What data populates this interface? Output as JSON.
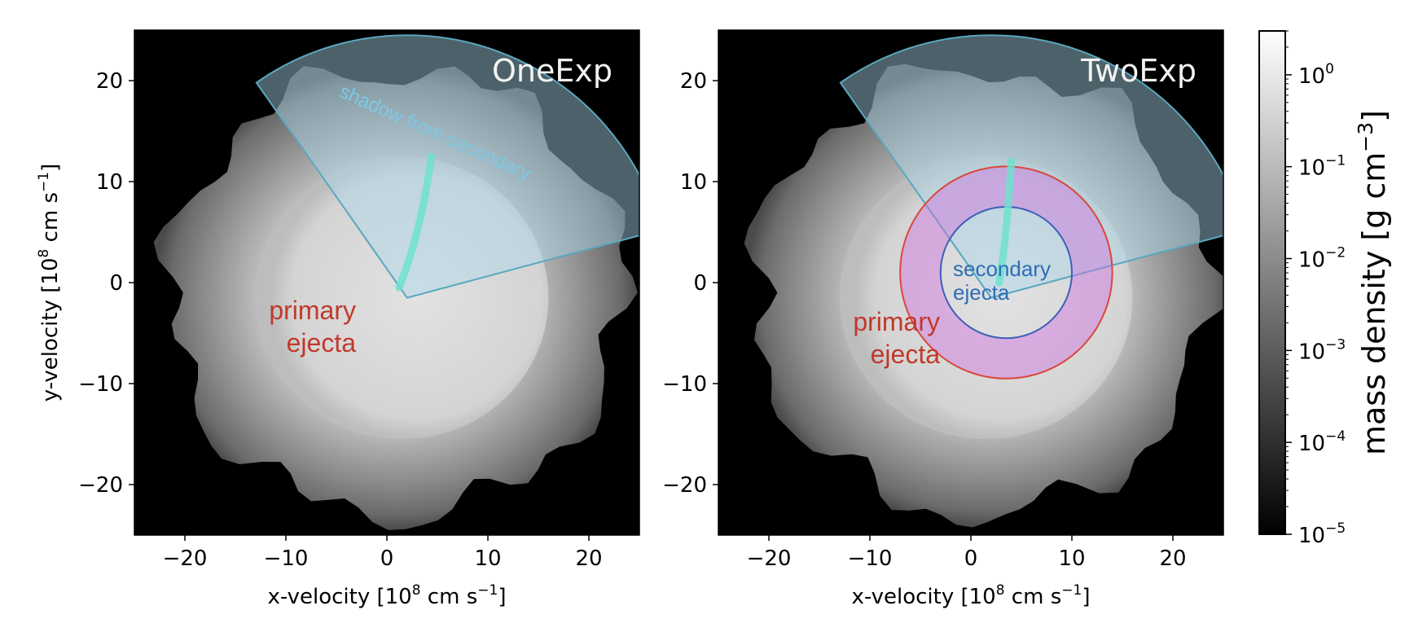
{
  "chart_data": [
    {
      "type": "heatmap",
      "title": "OneExp",
      "xlabel": "x-velocity [10",
      "xlabel_sup": "8",
      "xlabel_tail": " cm s",
      "xlabel_sup2": "−1",
      "xlabel_end": "]",
      "ylabel": "y-velocity [10",
      "ylabel_sup": "8",
      "ylabel_tail": " cm s",
      "ylabel_sup2": "−1",
      "ylabel_end": "]",
      "xlim": [
        -25,
        25
      ],
      "ylim": [
        -25,
        25
      ],
      "xticks": [
        -20,
        -10,
        0,
        10,
        20
      ],
      "yticks": [
        -20,
        -10,
        0,
        10,
        20
      ],
      "xtick_labels": [
        "−20",
        "−10",
        "0",
        "10",
        "20"
      ],
      "ytick_labels": [
        "−20",
        "−10",
        "0",
        "10",
        "20"
      ],
      "annotations": {
        "primary_line1": "primary",
        "primary_line2": "ejecta",
        "shadow": "shadow from secondary"
      },
      "shadow_wedge": {
        "center": [
          2,
          -1.5
        ],
        "angle_start_deg": 15,
        "angle_end_deg": 125,
        "radius": 26
      },
      "secondary_stream": [
        [
          1.2,
          -0.5
        ],
        [
          3.4,
          5
        ],
        [
          4.4,
          12.5
        ]
      ],
      "ejecta_ring": null
    },
    {
      "type": "heatmap",
      "title": "TwoExp",
      "xlabel": "x-velocity [10",
      "xlabel_sup": "8",
      "xlabel_tail": " cm s",
      "xlabel_sup2": "−1",
      "xlabel_end": "]",
      "xlim": [
        -25,
        25
      ],
      "ylim": [
        -25,
        25
      ],
      "xticks": [
        -20,
        -10,
        0,
        10,
        20
      ],
      "yticks": [
        -20,
        -10,
        0,
        10,
        20
      ],
      "xtick_labels": [
        "−20",
        "−10",
        "0",
        "10",
        "20"
      ],
      "ytick_labels": [
        "−20",
        "−10",
        "0",
        "10",
        "20"
      ],
      "annotations": {
        "primary_line1": "primary",
        "primary_line2": "ejecta",
        "secondary_line1": "secondary",
        "secondary_line2": "ejecta"
      },
      "shadow_wedge": {
        "center": [
          2,
          -1.5
        ],
        "angle_start_deg": 15,
        "angle_end_deg": 125,
        "radius": 26
      },
      "secondary_stream": [
        [
          2.8,
          0
        ],
        [
          3.5,
          4
        ],
        [
          4,
          12
        ]
      ],
      "ejecta_ring": {
        "center": [
          3.5,
          1
        ],
        "outer_radius": 10.5,
        "inner_radius": 6.5
      }
    }
  ],
  "colorbar": {
    "label_pre": "mass density [g cm",
    "label_sup": "−3",
    "label_end": "]",
    "scale": "log",
    "range": [
      1e-05,
      3
    ],
    "ticks": [
      {
        "base": "10",
        "exp": "0",
        "value": 1
      },
      {
        "base": "10",
        "exp": "−1",
        "value": 0.1
      },
      {
        "base": "10",
        "exp": "−2",
        "value": 0.01
      },
      {
        "base": "10",
        "exp": "−3",
        "value": 0.001
      },
      {
        "base": "10",
        "exp": "−4",
        "value": 0.0001
      },
      {
        "base": "10",
        "exp": "−5",
        "value": 1e-05
      }
    ]
  },
  "colors": {
    "background": "#000000",
    "shadow_fill": "#a9d6e8",
    "shadow_edge": "#5aa7bf",
    "stream": "#6fe0cf",
    "ring_outer_edge": "#d9473a",
    "ring_fill": "#d070e0",
    "ring_inner_edge": "#3d5fb8",
    "primary_text": "#c0392b",
    "secondary_text": "#2f6db5",
    "shadow_text": "#7cc8e6"
  }
}
